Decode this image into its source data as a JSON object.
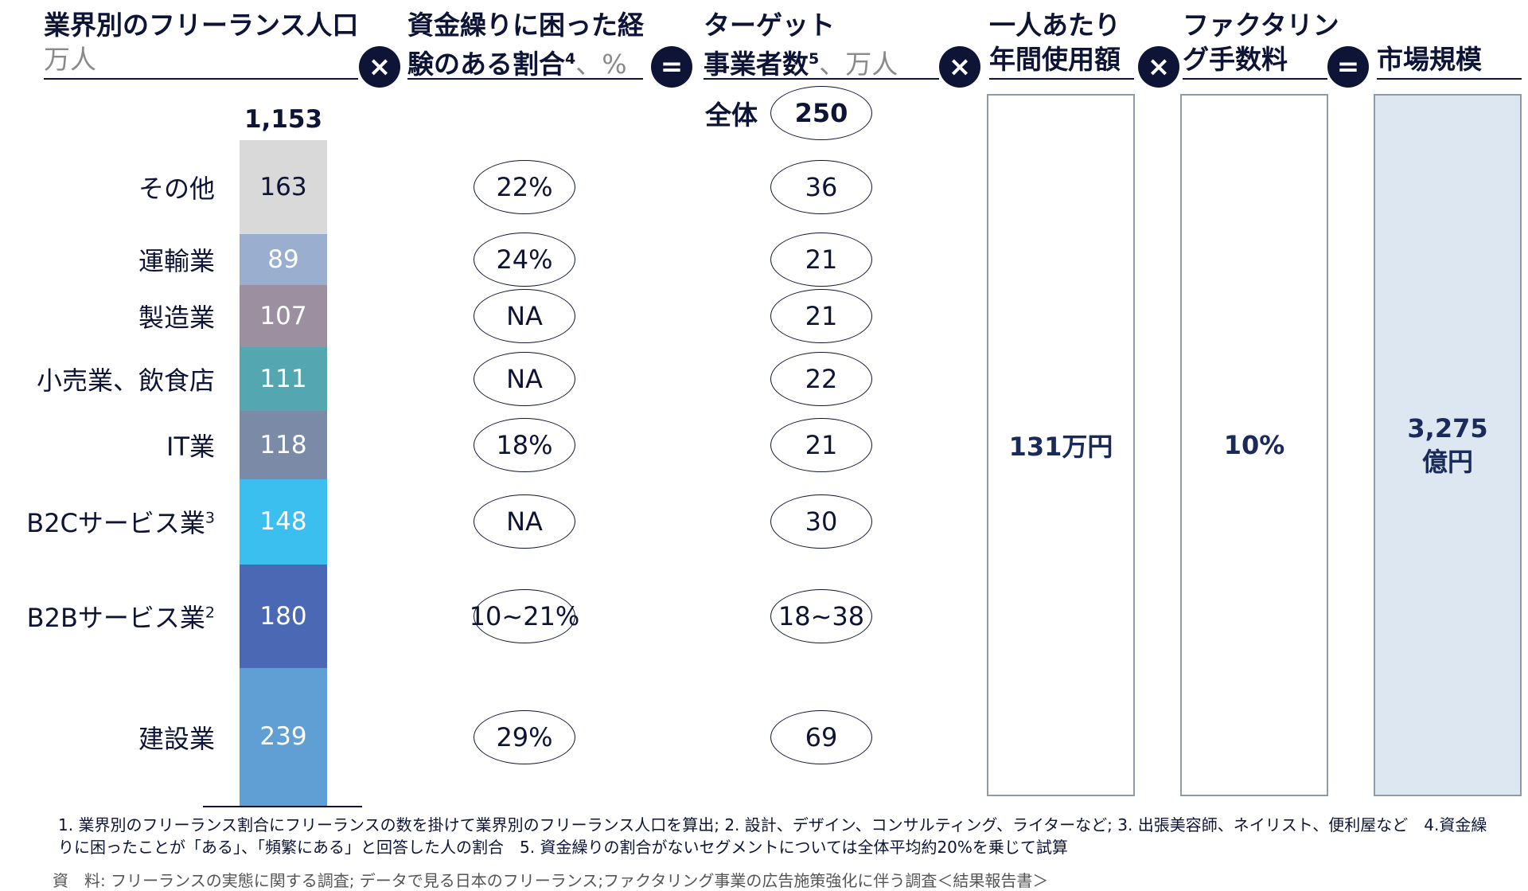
{
  "headers": {
    "col1_title": "業界別のフリーランス人口",
    "col1_unit": "万人",
    "col2_line1": "資金繰りに困った経",
    "col2_line2": "験のある割合",
    "col2_sup": "4",
    "col2_unit": "、%",
    "col3_line1": "ターゲット",
    "col3_line2": "事業者数",
    "col3_sup": "5",
    "col3_unit": "、万人",
    "col4_line1": "一人あたり",
    "col4_line2": "年間使用額",
    "col5_line1": "ファクタリン",
    "col5_line2": "グ手数料",
    "col6_line1": "市場規模"
  },
  "operators": [
    "×",
    "=",
    "×",
    "×",
    "="
  ],
  "total_label": "全体",
  "colors": {
    "navy": "#0d1435",
    "その他": "#d9d9d9",
    "運輸業": "#9aaed0",
    "製造業": "#9b8fa0",
    "小売業、飲食店": "#54a6b0",
    "IT業": "#7b8aa6",
    "B2Cサービス業": "#3bbfef",
    "B2Bサービス業": "#4a68b4",
    "建設業": "#5f9fd3",
    "market_box": "#dde7f1"
  },
  "chart_data": {
    "type": "bar",
    "stacked": true,
    "total": "1,153",
    "segments": [
      {
        "name": "その他",
        "sup": "",
        "value": 163,
        "share": "22%",
        "target": "36"
      },
      {
        "name": "運輸業",
        "sup": "",
        "value": 89,
        "share": "24%",
        "target": "21"
      },
      {
        "name": "製造業",
        "sup": "",
        "value": 107,
        "share": "NA",
        "target": "21"
      },
      {
        "name": "小売業、飲食店",
        "sup": "",
        "value": 111,
        "share": "NA",
        "target": "22"
      },
      {
        "name": "IT業",
        "sup": "",
        "value": 118,
        "share": "18%",
        "target": "21"
      },
      {
        "name": "B2Cサービス業",
        "sup": "3",
        "value": 148,
        "share": "NA",
        "target": "30"
      },
      {
        "name": "B2Bサービス業",
        "sup": "2",
        "value": 180,
        "share": "10~21%",
        "target": "18~38"
      },
      {
        "name": "建設業",
        "sup": "",
        "value": 239,
        "share": "29%",
        "target": "69"
      }
    ],
    "target_total": "250"
  },
  "boxes": {
    "annual_spend": "131万円",
    "fee": "10%",
    "market_line1": "3,275",
    "market_line2": "億円"
  },
  "footnotes": {
    "line1": "1. 業界別のフリーランス割合にフリーランスの数を掛けて業界別のフリーランス人口を算出; 2. 設計、デザイン、コンサルティング、ライターなど; 3. 出張美容師、ネイリスト、便利屋など　4.資金繰りに困ったことが「ある」、「頻繁にある」と回答した人の割合　5. 資金繰りの割合がないセグメントについては全体平均約20%を乗じて試算",
    "source": "資　料: フリーランスの実態に関する調査; データで見る日本のフリーランス;ファクタリング事業の広告施策強化に伴う調査＜結果報告書＞"
  }
}
